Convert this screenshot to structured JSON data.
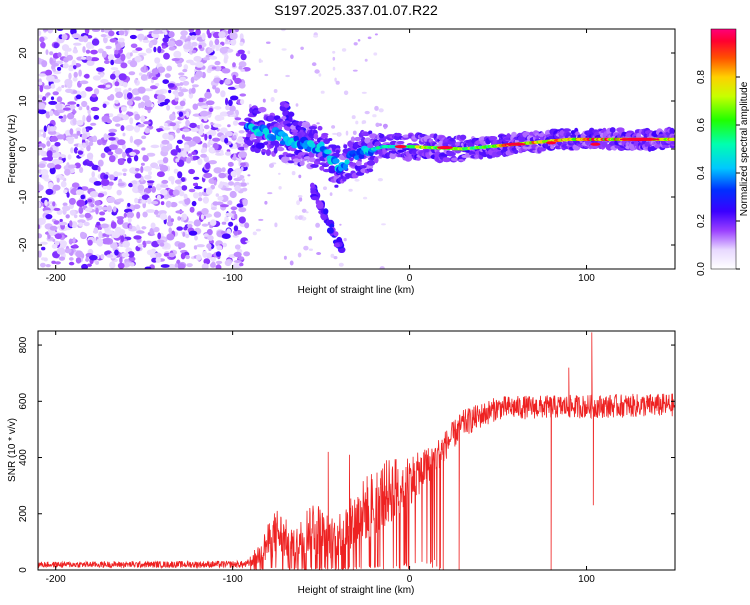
{
  "chart_data": [
    {
      "type": "heatmap",
      "title": "S197.2025.337.01.07.R22",
      "xlabel": "Height of straight line (km)",
      "ylabel": "Frequency (Hz)",
      "xlim": [
        -210,
        150
      ],
      "ylim": [
        -25,
        25
      ],
      "xticks": [
        -200,
        -100,
        0,
        100
      ],
      "yticks": [
        -20,
        -10,
        0,
        10,
        20
      ],
      "colorbar": {
        "label": "Normalized spectral amplitude",
        "range": [
          0,
          1
        ],
        "ticks": [
          "0.0",
          "0.2",
          "0.4",
          "0.6",
          "0.8"
        ]
      },
      "features": [
        {
          "name": "noise-region",
          "x_range": [
            -210,
            -92
          ],
          "f_range": [
            -25,
            25
          ],
          "level": 0.1
        },
        {
          "name": "main-carrier",
          "points": [
            [
              -92,
              5
            ],
            [
              -80,
              3.5
            ],
            [
              -65,
              1.5
            ],
            [
              -50,
              0
            ],
            [
              -40,
              -4
            ],
            [
              -30,
              -1
            ],
            [
              -15,
              0.5
            ],
            [
              0,
              0.5
            ],
            [
              30,
              0
            ],
            [
              60,
              1
            ],
            [
              90,
              2
            ],
            [
              150,
              2
            ]
          ],
          "level": 0.6
        },
        {
          "name": "upper-branch",
          "points": [
            [
              -72,
              9.5
            ],
            [
              -65,
              5
            ],
            [
              -55,
              1
            ]
          ],
          "level": 0.25
        },
        {
          "name": "lower-branch",
          "points": [
            [
              -55,
              -8
            ],
            [
              -45,
              -16
            ],
            [
              -38,
              -21
            ]
          ],
          "level": 0.25
        }
      ]
    },
    {
      "type": "line",
      "xlabel": "Height of straight line (km)",
      "ylabel": "SNR (10 * v/v)",
      "xlim": [
        -210,
        150
      ],
      "ylim": [
        0,
        850
      ],
      "xticks": [
        -200,
        -100,
        0,
        100
      ],
      "yticks": [
        0,
        200,
        400,
        600,
        800
      ],
      "series": [
        {
          "name": "SNR",
          "color": "#ee2222",
          "envelope": [
            {
              "x": -210,
              "base": 15,
              "amp": 15
            },
            {
              "x": -92,
              "base": 15,
              "amp": 18
            },
            {
              "x": -85,
              "base": 40,
              "amp": 60
            },
            {
              "x": -75,
              "base": 100,
              "amp": 130
            },
            {
              "x": -65,
              "base": 60,
              "amp": 80
            },
            {
              "x": -55,
              "base": 120,
              "amp": 150
            },
            {
              "x": -45,
              "base": 80,
              "amp": 110
            },
            {
              "x": -35,
              "base": 110,
              "amp": 130
            },
            {
              "x": -25,
              "base": 170,
              "amp": 170
            },
            {
              "x": -10,
              "base": 240,
              "amp": 170
            },
            {
              "x": 5,
              "base": 310,
              "amp": 110
            },
            {
              "x": 15,
              "base": 380,
              "amp": 80
            },
            {
              "x": 30,
              "base": 500,
              "amp": 70
            },
            {
              "x": 50,
              "base": 560,
              "amp": 60
            },
            {
              "x": 150,
              "base": 570,
              "amp": 60
            }
          ],
          "spikes": [
            {
              "x": -46,
              "y": 420
            },
            {
              "x": -34,
              "y": 410
            },
            {
              "x": 103,
              "y": 845
            },
            {
              "x": 103.8,
              "y": 230
            },
            {
              "x": 90,
              "y": 720
            },
            {
              "x": 80,
              "y": 0
            },
            {
              "x": 28,
              "y": 0
            },
            {
              "x": 17,
              "y": 0
            },
            {
              "x": 19,
              "y": 0
            }
          ]
        }
      ]
    }
  ]
}
